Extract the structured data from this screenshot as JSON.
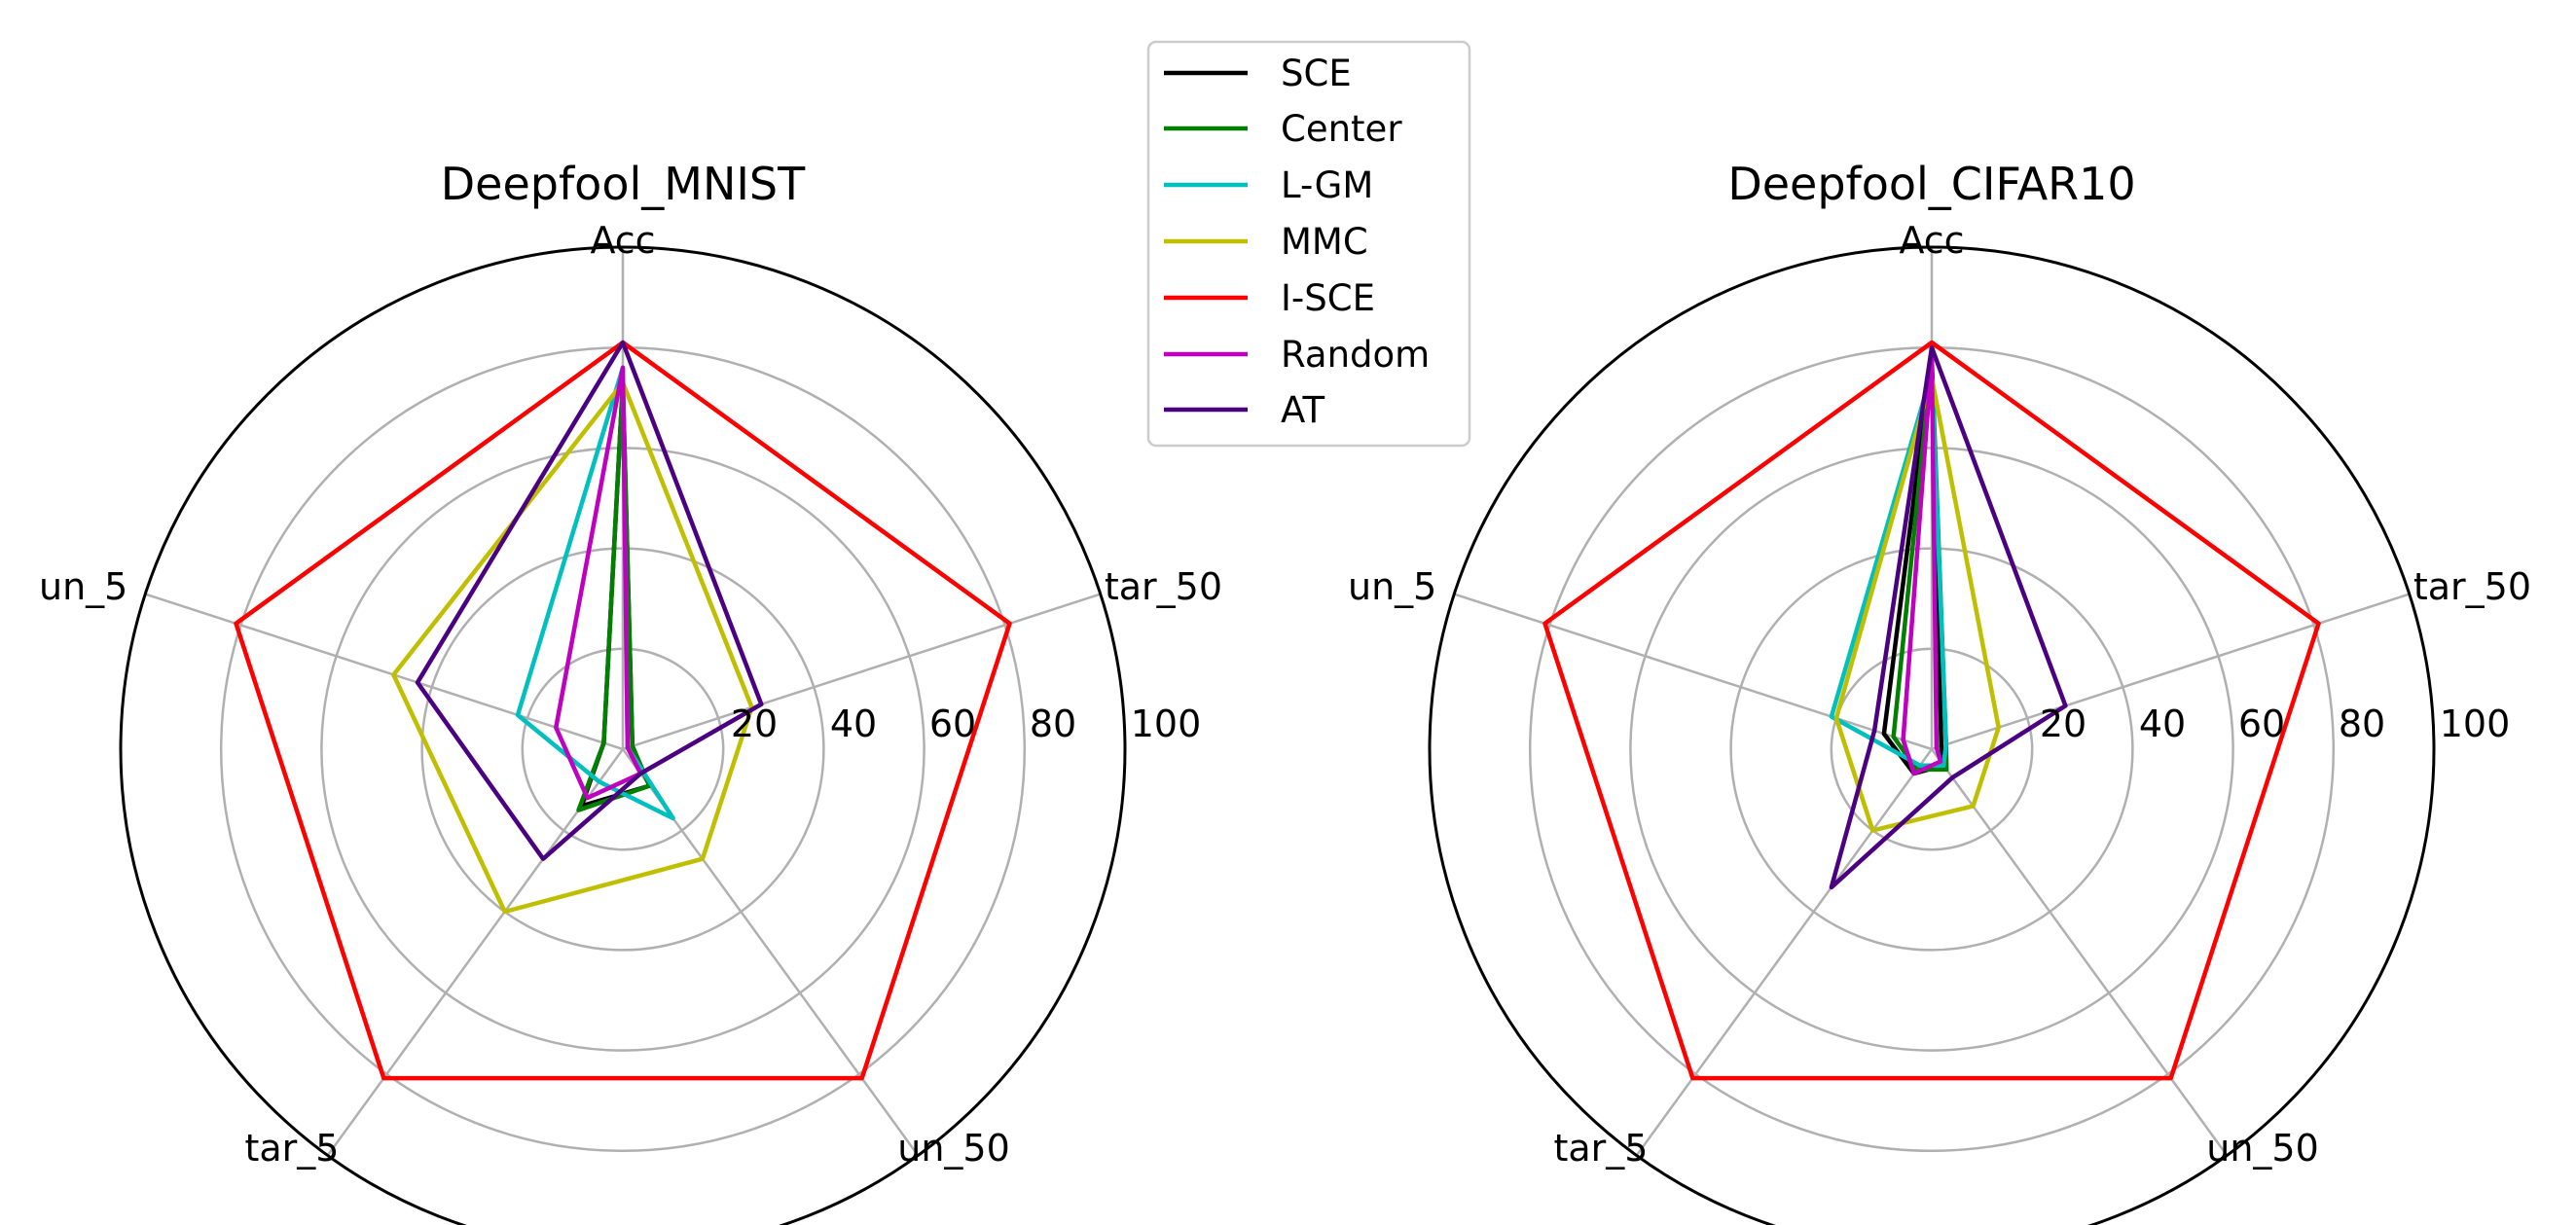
{
  "legend": {
    "entries": [
      {
        "name": "SCE",
        "color": "#000000"
      },
      {
        "name": "Center",
        "color": "#007f00"
      },
      {
        "name": "L-GM",
        "color": "#00bfbf"
      },
      {
        "name": "MMC",
        "color": "#bfbf00"
      },
      {
        "name": "I-SCE",
        "color": "#ff0000"
      },
      {
        "name": "Random",
        "color": "#bf00bf"
      },
      {
        "name": "AT",
        "color": "#4b0082"
      }
    ]
  },
  "chart_data": [
    {
      "type": "radar",
      "title": "Deepfool_MNIST",
      "axes": [
        "Acc",
        "tar_50",
        "un_50",
        "tar_5",
        "un_5"
      ],
      "r_ticks": [
        20,
        40,
        60,
        80,
        100
      ],
      "r_tick_labels": [
        "20",
        "40",
        "60",
        "80",
        "100"
      ],
      "rlim": [
        0,
        100
      ],
      "series": [
        {
          "name": "SCE",
          "color": "#000000",
          "values": [
            73,
            2,
            9,
            14,
            4
          ]
        },
        {
          "name": "Center",
          "color": "#007f00",
          "values": [
            73,
            2,
            9,
            15,
            4
          ]
        },
        {
          "name": "L-GM",
          "color": "#00bfbf",
          "values": [
            76,
            1,
            17,
            8,
            22
          ]
        },
        {
          "name": "MMC",
          "color": "#bfbf00",
          "values": [
            73,
            27,
            27,
            40,
            48
          ]
        },
        {
          "name": "I-SCE",
          "color": "#ff0000",
          "values": [
            81,
            81,
            81,
            81,
            81
          ]
        },
        {
          "name": "Random",
          "color": "#bf00bf",
          "values": [
            76,
            1,
            6,
            12,
            14
          ]
        },
        {
          "name": "AT",
          "color": "#4b0082",
          "values": [
            81,
            29,
            6,
            27,
            43
          ]
        }
      ]
    },
    {
      "type": "radar",
      "title": "Deepfool_CIFAR10",
      "axes": [
        "Acc",
        "tar_50",
        "un_50",
        "tar_5",
        "un_5"
      ],
      "r_ticks": [
        20,
        40,
        60,
        80,
        100
      ],
      "r_tick_labels": [
        "20",
        "40",
        "60",
        "80",
        "100"
      ],
      "rlim": [
        0,
        100
      ],
      "series": [
        {
          "name": "SCE",
          "color": "#000000",
          "values": [
            78,
            2,
            4,
            6,
            10
          ]
        },
        {
          "name": "Center",
          "color": "#007f00",
          "values": [
            78,
            3,
            5,
            5,
            8
          ]
        },
        {
          "name": "L-GM",
          "color": "#00bfbf",
          "values": [
            75,
            3,
            4,
            4,
            21
          ]
        },
        {
          "name": "MMC",
          "color": "#bfbf00",
          "values": [
            74,
            14,
            14,
            20,
            20
          ]
        },
        {
          "name": "I-SCE",
          "color": "#ff0000",
          "values": [
            81,
            81,
            81,
            81,
            81
          ]
        },
        {
          "name": "Random",
          "color": "#bf00bf",
          "values": [
            78,
            1,
            3,
            6,
            6
          ]
        },
        {
          "name": "AT",
          "color": "#4b0082",
          "values": [
            80,
            28,
            7,
            34,
            12
          ]
        }
      ]
    }
  ]
}
